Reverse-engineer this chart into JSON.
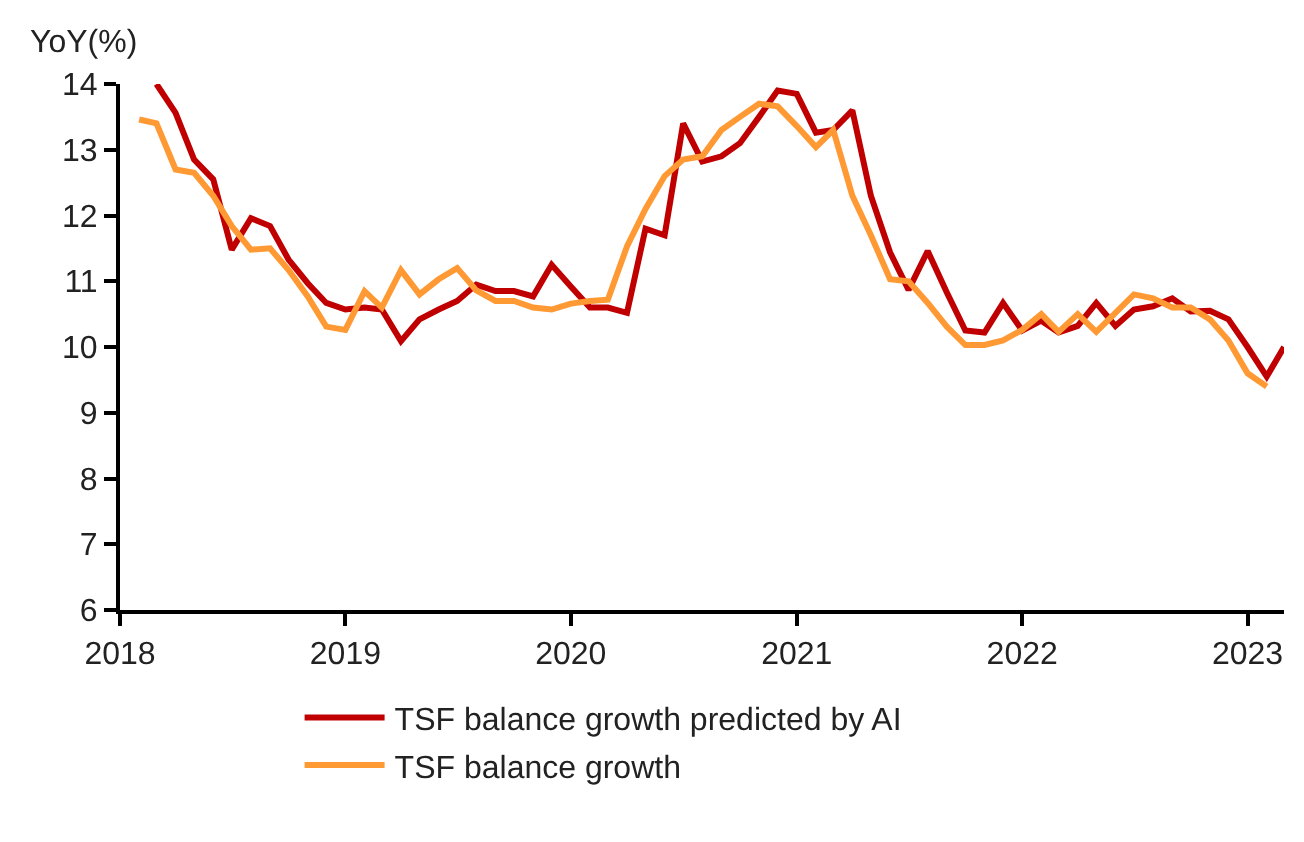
{
  "chart_data": {
    "type": "line",
    "ylabel": "YoY(%)",
    "xlim": [
      "2018-01",
      "2023-03"
    ],
    "xticks": [
      "2018",
      "2019",
      "2020",
      "2021",
      "2022",
      "2023"
    ],
    "ylim": [
      6,
      14
    ],
    "yticks": [
      6,
      7,
      8,
      9,
      10,
      11,
      12,
      13,
      14
    ],
    "legend": "bottom",
    "marker": "none",
    "line_style": "solid",
    "series": [
      {
        "name": "TSF balance growth predicted by AI",
        "color": "#c00000",
        "x": [
          "2018-03",
          "2018-04",
          "2018-05",
          "2018-06",
          "2018-07",
          "2018-08",
          "2018-09",
          "2018-10",
          "2018-11",
          "2018-12",
          "2019-01",
          "2019-02",
          "2019-03",
          "2019-04",
          "2019-05",
          "2019-06",
          "2019-07",
          "2019-08",
          "2019-09",
          "2019-10",
          "2019-11",
          "2019-12",
          "2020-01",
          "2020-02",
          "2020-03",
          "2020-04",
          "2020-05",
          "2020-06",
          "2020-07",
          "2020-08",
          "2020-09",
          "2020-10",
          "2020-11",
          "2020-12",
          "2021-01",
          "2021-02",
          "2021-03",
          "2021-04",
          "2021-05",
          "2021-06",
          "2021-07",
          "2021-08",
          "2021-09",
          "2021-10",
          "2021-11",
          "2021-12",
          "2022-01",
          "2022-02",
          "2022-03",
          "2022-04",
          "2022-05",
          "2022-06",
          "2022-07",
          "2022-08",
          "2022-09",
          "2022-10",
          "2022-11",
          "2022-12",
          "2023-01",
          "2023-02",
          "2023-03"
        ],
        "values": [
          14.0,
          13.56,
          12.85,
          12.55,
          11.48,
          11.96,
          11.84,
          11.33,
          10.97,
          10.67,
          10.57,
          10.6,
          10.57,
          10.09,
          10.42,
          10.57,
          10.7,
          10.95,
          10.85,
          10.85,
          10.77,
          11.25,
          10.92,
          10.6,
          10.6,
          10.52,
          11.8,
          11.7,
          13.4,
          12.82,
          12.9,
          13.1,
          13.5,
          13.9,
          13.85,
          13.26,
          13.3,
          13.6,
          12.3,
          11.44,
          10.87,
          11.46,
          10.83,
          10.25,
          10.22,
          10.67,
          10.25,
          10.4,
          10.22,
          10.32,
          10.67,
          10.32,
          10.57,
          10.62,
          10.74,
          10.54,
          10.55,
          10.42,
          10.0,
          9.55,
          10.0
        ]
      },
      {
        "name": "TSF balance growth",
        "color": "#ff9933",
        "x": [
          "2018-02",
          "2018-03",
          "2018-04",
          "2018-05",
          "2018-06",
          "2018-07",
          "2018-08",
          "2018-09",
          "2018-10",
          "2018-11",
          "2018-12",
          "2019-01",
          "2019-02",
          "2019-03",
          "2019-04",
          "2019-05",
          "2019-06",
          "2019-07",
          "2019-08",
          "2019-09",
          "2019-10",
          "2019-11",
          "2019-12",
          "2020-01",
          "2020-02",
          "2020-03",
          "2020-04",
          "2020-05",
          "2020-06",
          "2020-07",
          "2020-08",
          "2020-09",
          "2020-10",
          "2020-11",
          "2020-12",
          "2021-01",
          "2021-02",
          "2021-03",
          "2021-04",
          "2021-05",
          "2021-06",
          "2021-07",
          "2021-08",
          "2021-09",
          "2021-10",
          "2021-11",
          "2021-12",
          "2022-01",
          "2022-02",
          "2022-03",
          "2022-04",
          "2022-05",
          "2022-06",
          "2022-07",
          "2022-08",
          "2022-09",
          "2022-10",
          "2022-11",
          "2022-12",
          "2023-01",
          "2023-02"
        ],
        "values": [
          13.46,
          13.4,
          12.7,
          12.65,
          12.3,
          11.84,
          11.48,
          11.5,
          11.17,
          10.77,
          10.31,
          10.26,
          10.85,
          10.6,
          11.17,
          10.8,
          11.03,
          11.2,
          10.86,
          10.7,
          10.7,
          10.6,
          10.57,
          10.66,
          10.7,
          10.72,
          11.53,
          12.1,
          12.6,
          12.85,
          12.9,
          13.3,
          13.5,
          13.7,
          13.66,
          13.36,
          13.04,
          13.3,
          12.3,
          11.7,
          11.03,
          11.0,
          10.67,
          10.31,
          10.03,
          10.03,
          10.1,
          10.26,
          10.5,
          10.23,
          10.5,
          10.23,
          10.52,
          10.8,
          10.74,
          10.6,
          10.6,
          10.42,
          10.1,
          9.6,
          9.4
        ]
      }
    ]
  }
}
